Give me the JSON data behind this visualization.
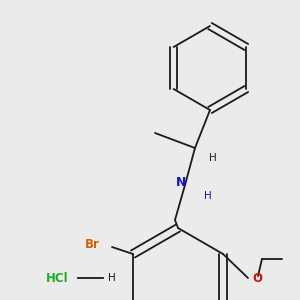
{
  "bg_color": "#ebebeb",
  "bond_color": "#1a1a1a",
  "N_color": "#1414cc",
  "O_color": "#cc1414",
  "Br_color": "#cc6600",
  "Cl_color": "#22aa22",
  "line_width": 1.3,
  "font_size": 7.5,
  "figsize": [
    3.0,
    3.0
  ],
  "dpi": 100,
  "xlim": [
    0,
    300
  ],
  "ylim": [
    0,
    300
  ]
}
